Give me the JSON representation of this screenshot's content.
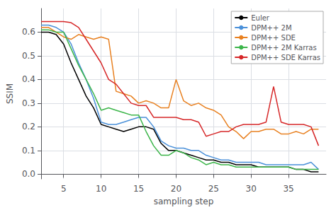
{
  "chart_data": {
    "type": "line",
    "xlabel": "sampling step",
    "ylabel": "SSIM",
    "x": [
      2,
      3,
      4,
      5,
      6,
      7,
      8,
      9,
      10,
      11,
      12,
      13,
      14,
      15,
      16,
      17,
      18,
      19,
      20,
      21,
      22,
      23,
      24,
      25,
      26,
      27,
      28,
      29,
      30,
      31,
      32,
      33,
      34,
      35,
      36,
      37,
      38,
      39
    ],
    "series": [
      {
        "name": "Euler",
        "color": "#000000",
        "values": [
          0.6,
          0.6,
          0.59,
          0.55,
          0.47,
          0.4,
          0.33,
          0.28,
          0.21,
          0.2,
          0.19,
          0.18,
          0.19,
          0.2,
          0.2,
          0.19,
          0.13,
          0.1,
          0.1,
          0.09,
          0.08,
          0.07,
          0.06,
          0.06,
          0.05,
          0.05,
          0.04,
          0.04,
          0.04,
          0.03,
          0.03,
          0.03,
          0.03,
          0.03,
          0.02,
          0.02,
          0.01,
          0.01
        ]
      },
      {
        "name": "DPM++ 2M",
        "color": "#4a90d9",
        "values": [
          0.63,
          0.63,
          0.62,
          0.6,
          0.55,
          0.47,
          0.4,
          0.32,
          0.22,
          0.21,
          0.21,
          0.22,
          0.23,
          0.24,
          0.24,
          0.2,
          0.14,
          0.12,
          0.11,
          0.11,
          0.1,
          0.1,
          0.08,
          0.07,
          0.06,
          0.06,
          0.05,
          0.05,
          0.05,
          0.05,
          0.04,
          0.04,
          0.04,
          0.04,
          0.04,
          0.04,
          0.05,
          0.02
        ]
      },
      {
        "name": "DPM++ SDE",
        "color": "#e88020",
        "values": [
          0.62,
          0.62,
          0.6,
          0.58,
          0.57,
          0.59,
          0.58,
          0.57,
          0.58,
          0.57,
          0.35,
          0.34,
          0.33,
          0.3,
          0.31,
          0.3,
          0.28,
          0.28,
          0.4,
          0.31,
          0.29,
          0.3,
          0.28,
          0.27,
          0.25,
          0.2,
          0.18,
          0.15,
          0.18,
          0.18,
          0.19,
          0.19,
          0.17,
          0.17,
          0.18,
          0.17,
          0.19,
          0.19
        ]
      },
      {
        "name": "DPM++ 2M Karras",
        "color": "#3cb54a",
        "values": [
          0.61,
          0.61,
          0.6,
          0.6,
          0.53,
          0.46,
          0.4,
          0.34,
          0.27,
          0.28,
          0.27,
          0.26,
          0.25,
          0.25,
          0.18,
          0.12,
          0.08,
          0.08,
          0.1,
          0.09,
          0.07,
          0.06,
          0.04,
          0.05,
          0.04,
          0.04,
          0.03,
          0.03,
          0.03,
          0.03,
          0.03,
          0.03,
          0.03,
          0.03,
          0.02,
          0.02,
          0.02,
          0.02
        ]
      },
      {
        "name": "DPM++ SDE Karras",
        "color": "#d62728",
        "values": [
          0.645,
          0.645,
          0.645,
          0.645,
          0.64,
          0.62,
          0.57,
          0.52,
          0.47,
          0.4,
          0.38,
          0.34,
          0.3,
          0.29,
          0.29,
          0.24,
          0.24,
          0.24,
          0.24,
          0.23,
          0.23,
          0.22,
          0.16,
          0.17,
          0.18,
          0.18,
          0.2,
          0.21,
          0.21,
          0.21,
          0.22,
          0.37,
          0.22,
          0.21,
          0.21,
          0.21,
          0.2,
          0.12
        ]
      }
    ],
    "xlim": [
      2,
      40
    ],
    "xticks": [
      5,
      10,
      15,
      20,
      25,
      30,
      35
    ],
    "ylim": [
      -0.02,
      0.7
    ],
    "yticks": [
      {
        "value": 0.0,
        "label": "0.0"
      },
      0.1,
      0.2,
      0.3,
      0.4,
      0.5,
      0.6
    ],
    "grid": true,
    "legend": "upper right"
  }
}
